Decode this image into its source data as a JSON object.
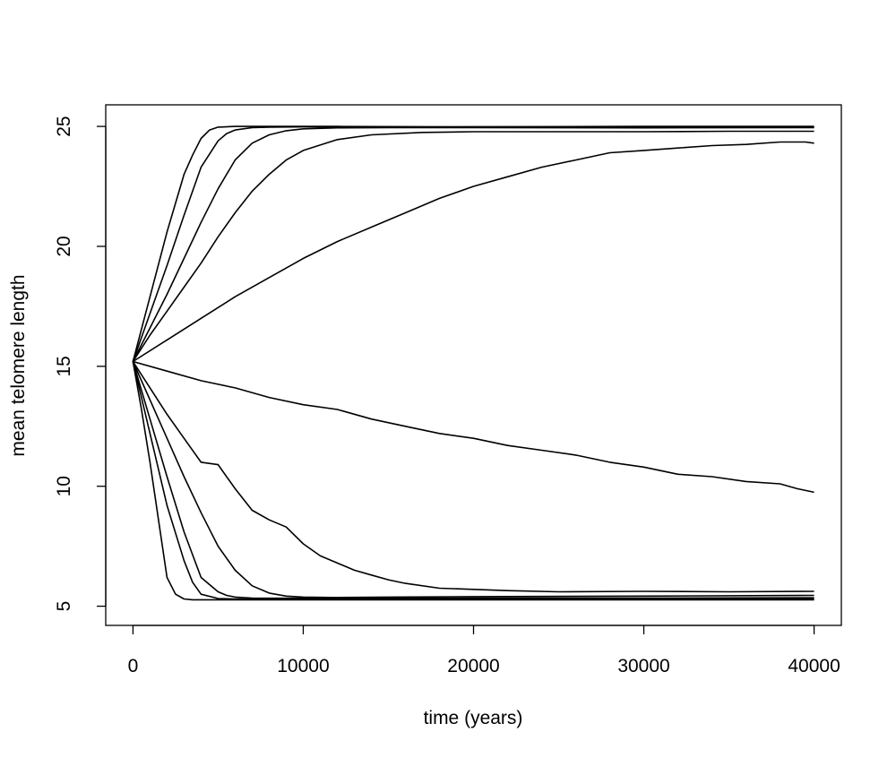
{
  "chart_data": {
    "type": "line",
    "title": "",
    "xlabel": "time (years)",
    "ylabel": "mean telomere length",
    "xlim": [
      -1600,
      41600
    ],
    "ylim": [
      4.2,
      25.9
    ],
    "x_ticks": [
      0,
      10000,
      20000,
      30000,
      40000
    ],
    "x_tick_labels": [
      "0",
      "10000",
      "20000",
      "30000",
      "40000"
    ],
    "y_ticks": [
      5,
      10,
      15,
      20,
      25
    ],
    "y_tick_labels": [
      "5",
      "10",
      "15",
      "20",
      "25"
    ],
    "grid": false,
    "legend": "none",
    "line_color": "#000000",
    "series": [
      {
        "x": [
          0,
          1000,
          2000,
          3000,
          3500,
          4000,
          4500,
          5000,
          6000,
          8000,
          12000,
          20000,
          30000,
          40000
        ],
        "values": [
          15.2,
          17.9,
          20.6,
          23.0,
          23.8,
          24.5,
          24.85,
          24.97,
          25.0,
          25.0,
          25.0,
          24.98,
          25.0,
          25.0
        ]
      },
      {
        "x": [
          0,
          1000,
          2000,
          3000,
          4000,
          5000,
          5500,
          6000,
          7000,
          8000,
          10000,
          15000,
          20000,
          30000,
          40000
        ],
        "values": [
          15.2,
          17.2,
          19.2,
          21.3,
          23.3,
          24.4,
          24.7,
          24.85,
          24.95,
          24.97,
          24.98,
          24.97,
          24.98,
          24.97,
          24.98
        ]
      },
      {
        "x": [
          0,
          1000,
          2000,
          3000,
          4000,
          5000,
          6000,
          7000,
          8000,
          9000,
          10000,
          12000,
          15000,
          20000,
          30000,
          40000
        ],
        "values": [
          15.2,
          16.6,
          18.0,
          19.5,
          21.0,
          22.4,
          23.6,
          24.3,
          24.65,
          24.82,
          24.9,
          24.94,
          24.95,
          24.95,
          24.94,
          24.95
        ]
      },
      {
        "x": [
          0,
          1000,
          2000,
          3000,
          4000,
          5000,
          6000,
          7000,
          8000,
          9000,
          10000,
          12000,
          14000,
          17000,
          20000,
          25000,
          30000,
          35000,
          40000
        ],
        "values": [
          15.2,
          16.3,
          17.3,
          18.3,
          19.3,
          20.4,
          21.4,
          22.3,
          23.0,
          23.6,
          24.0,
          24.45,
          24.65,
          24.75,
          24.78,
          24.78,
          24.78,
          24.8,
          24.8
        ]
      },
      {
        "x": [
          0,
          2000,
          4000,
          6000,
          8000,
          10000,
          12000,
          14000,
          16000,
          18000,
          20000,
          22000,
          24000,
          26000,
          28000,
          30000,
          32000,
          34000,
          36000,
          38000,
          39500,
          40000
        ],
        "values": [
          15.2,
          16.1,
          17.0,
          17.9,
          18.7,
          19.5,
          20.2,
          20.8,
          21.4,
          22.0,
          22.5,
          22.9,
          23.3,
          23.6,
          23.9,
          24.0,
          24.1,
          24.2,
          24.25,
          24.35,
          24.35,
          24.3
        ]
      },
      {
        "x": [
          0,
          2000,
          4000,
          6000,
          8000,
          10000,
          12000,
          14000,
          16000,
          18000,
          20000,
          22000,
          24000,
          26000,
          28000,
          30000,
          32000,
          34000,
          36000,
          38000,
          39000,
          40000
        ],
        "values": [
          15.2,
          14.8,
          14.4,
          14.1,
          13.7,
          13.4,
          13.2,
          12.8,
          12.5,
          12.2,
          12.0,
          11.7,
          11.5,
          11.3,
          11.0,
          10.8,
          10.5,
          10.4,
          10.2,
          10.1,
          9.9,
          9.75
        ]
      },
      {
        "x": [
          0,
          1000,
          2000,
          3000,
          4000,
          5000,
          6000,
          7000,
          8000,
          9000,
          10000,
          11000,
          12000,
          13000,
          14000,
          15000,
          16000,
          18000,
          20000,
          22000,
          25000,
          30000,
          35000,
          40000
        ],
        "values": [
          15.2,
          14.1,
          13.0,
          12.0,
          11.0,
          10.9,
          9.9,
          9.0,
          8.6,
          8.3,
          7.6,
          7.1,
          6.8,
          6.5,
          6.3,
          6.1,
          5.95,
          5.75,
          5.7,
          5.65,
          5.6,
          5.62,
          5.6,
          5.62
        ]
      },
      {
        "x": [
          0,
          1000,
          2000,
          3000,
          4000,
          5000,
          6000,
          7000,
          8000,
          9000,
          10000,
          12000,
          15000,
          20000,
          30000,
          40000
        ],
        "values": [
          15.2,
          13.6,
          12.0,
          10.4,
          8.9,
          7.5,
          6.5,
          5.85,
          5.55,
          5.42,
          5.38,
          5.36,
          5.38,
          5.4,
          5.42,
          5.45
        ]
      },
      {
        "x": [
          0,
          1000,
          2000,
          3000,
          4000,
          5000,
          5500,
          6000,
          7000,
          8000,
          10000,
          15000,
          20000,
          30000,
          40000
        ],
        "values": [
          15.2,
          12.8,
          10.4,
          8.1,
          6.2,
          5.6,
          5.45,
          5.38,
          5.34,
          5.33,
          5.33,
          5.33,
          5.34,
          5.34,
          5.35
        ]
      },
      {
        "x": [
          0,
          1000,
          2000,
          3000,
          3500,
          4000,
          5000,
          6000,
          7000,
          8000,
          10000,
          20000,
          30000,
          40000
        ],
        "values": [
          15.2,
          12.2,
          9.2,
          6.9,
          6.0,
          5.5,
          5.32,
          5.3,
          5.3,
          5.3,
          5.3,
          5.3,
          5.3,
          5.3
        ]
      },
      {
        "x": [
          0,
          500,
          1000,
          1500,
          2000,
          2500,
          3000,
          3500,
          4000,
          5000,
          6000,
          10000,
          20000,
          30000,
          40000
        ],
        "values": [
          15.2,
          13.2,
          11.0,
          8.6,
          6.2,
          5.5,
          5.3,
          5.27,
          5.27,
          5.27,
          5.27,
          5.27,
          5.27,
          5.27,
          5.27
        ]
      }
    ]
  }
}
